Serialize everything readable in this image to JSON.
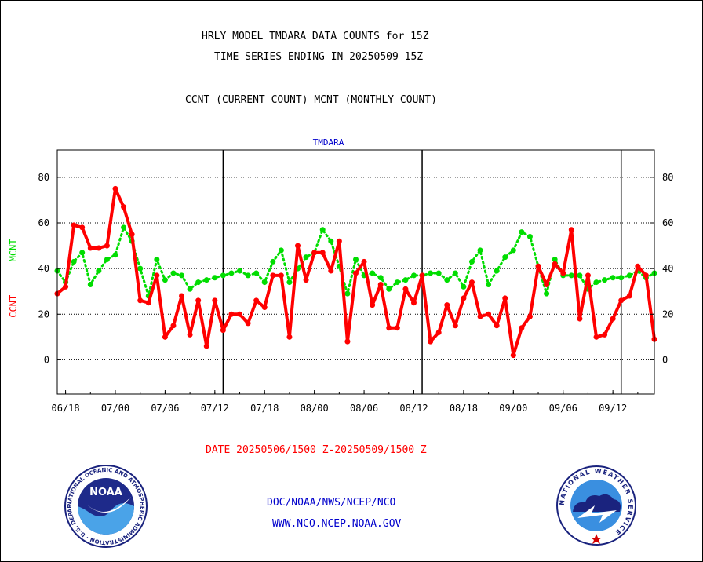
{
  "header": {
    "title_line1": "HRLY MODEL TMDARA DATA COUNTS for 15Z",
    "title_line2": "TIME SERIES ENDING IN 20250509 15Z",
    "subtitle": "CCNT (CURRENT COUNT) MCNT (MONTHLY COUNT)"
  },
  "footer": {
    "date_range": "DATE 20250506/1500 Z-20250509/1500 Z",
    "org": "DOC/NOAA/NWS/NCEP/NCO",
    "url": "WWW.NCO.NCEP.NOAA.GOV",
    "noaa_logo_text": "NOAA",
    "noaa_ring_text": "NATIONAL OCEANIC AND ATMOSPHERIC ADMINISTRATION · U.S. DEPARTMENT OF COMMERCE",
    "nws_ring_text": "NATIONAL WEATHER SERVICE"
  },
  "colors": {
    "ccnt": "#ff0000",
    "mcnt": "#00dd00",
    "panel_title": "#0000cc",
    "footer_text": "#0000cc",
    "date_text": "#ff0000"
  },
  "chart_data": {
    "type": "line",
    "title": "TMDARA",
    "ylabel_left_1": "CCNT",
    "ylabel_left_2": "MCNT",
    "ylim": [
      -15,
      92
    ],
    "yticks": [
      0,
      20,
      40,
      60,
      80
    ],
    "grid": true,
    "x_tick_labels": [
      "06/18",
      "07/00",
      "07/06",
      "07/12",
      "07/18",
      "08/00",
      "08/06",
      "08/12",
      "08/18",
      "09/00",
      "09/06",
      "09/12"
    ],
    "x": [
      0,
      1,
      2,
      3,
      4,
      5,
      6,
      7,
      8,
      9,
      10,
      11,
      12,
      13,
      14,
      15,
      16,
      17,
      18,
      19,
      20,
      21,
      22,
      23,
      24,
      25,
      26,
      27,
      28,
      29,
      30,
      31,
      32,
      33,
      34,
      35,
      36,
      37,
      38,
      39,
      40,
      41,
      42,
      43,
      44,
      45,
      46,
      47,
      48,
      49,
      50,
      51,
      52,
      53,
      54,
      55,
      56,
      57,
      58,
      59,
      60,
      61,
      62,
      63,
      64,
      65,
      66,
      67,
      68,
      69,
      70,
      71,
      72
    ],
    "series": [
      {
        "name": "CCNT",
        "values": [
          29,
          32,
          59,
          58,
          49,
          49,
          50,
          75,
          67,
          55,
          26,
          25,
          37,
          10,
          15,
          28,
          11,
          26,
          6,
          26,
          13,
          20,
          20,
          16,
          26,
          23,
          37,
          37,
          10,
          50,
          35,
          47,
          47,
          39,
          52,
          8,
          38,
          43,
          24,
          33,
          14,
          14,
          31,
          25,
          37,
          8,
          12,
          24,
          15,
          27,
          34,
          19,
          20,
          15,
          27,
          2,
          14,
          19,
          41,
          33,
          42,
          38,
          57,
          18,
          37,
          10,
          11,
          18,
          26,
          28,
          41,
          37,
          9
        ]
      },
      {
        "name": "MCNT",
        "values": [
          39,
          34,
          43,
          47,
          33,
          39,
          44,
          46,
          58,
          52,
          40,
          28,
          44,
          35,
          38,
          37,
          31,
          34,
          35,
          36,
          37,
          38,
          39,
          37,
          38,
          34,
          43,
          48,
          34,
          40,
          45,
          47,
          57,
          52,
          41,
          29,
          44,
          37,
          38,
          36,
          31,
          34,
          35,
          37,
          37,
          38,
          38,
          35,
          38,
          32,
          43,
          48,
          33,
          39,
          45,
          48,
          56,
          54,
          41,
          29,
          44,
          37,
          37,
          37,
          31,
          34,
          35,
          36,
          36,
          37,
          39,
          36,
          38
        ]
      }
    ],
    "vertical_lines_at_x": [
      20,
      44,
      68
    ]
  }
}
